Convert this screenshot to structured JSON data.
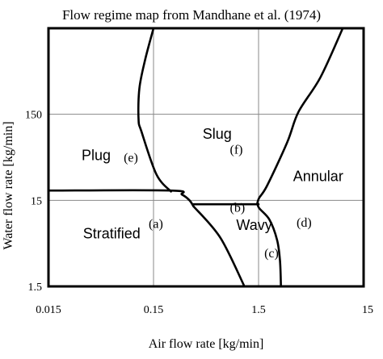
{
  "chart_data": {
    "type": "line",
    "title": "Flow regime map from Mandhane et al. (1974)",
    "xlabel": "Air flow rate [kg/min]",
    "ylabel": "Water flow rate [kg/min]",
    "x_scale": "log",
    "y_scale": "log",
    "xlim": [
      0.015,
      15
    ],
    "ylim": [
      1.5,
      1500
    ],
    "x_ticks": [
      {
        "value": 0.015,
        "label": "0.015"
      },
      {
        "value": 0.15,
        "label": "0.15"
      },
      {
        "value": 1.5,
        "label": "1.5"
      },
      {
        "value": 15,
        "label": "15"
      }
    ],
    "y_ticks": [
      {
        "value": 1.5,
        "label": "1.5"
      },
      {
        "value": 15,
        "label": "15"
      },
      {
        "value": 150,
        "label": "150"
      }
    ],
    "grid": true,
    "series": [
      {
        "key": "plug-slug-left",
        "points": [
          [
            0.15,
            1500
          ],
          [
            0.125,
            650
          ],
          [
            0.11,
            300
          ],
          [
            0.108,
            130
          ],
          [
            0.115,
            95
          ],
          [
            0.16,
            30
          ],
          [
            0.22,
            19
          ]
        ]
      },
      {
        "key": "stratified-upper",
        "points": [
          [
            0.015,
            19.5
          ],
          [
            0.22,
            19.5
          ],
          [
            0.28,
            17.5
          ],
          [
            0.33,
            15
          ],
          [
            0.36,
            12.8
          ]
        ]
      },
      {
        "key": "stratified-wavy",
        "points": [
          [
            0.36,
            12.8
          ],
          [
            0.65,
            5.5
          ],
          [
            1.1,
            1.5
          ]
        ]
      },
      {
        "key": "wavy-top",
        "points": [
          [
            0.36,
            13.5
          ],
          [
            1.5,
            13.5
          ]
        ]
      },
      {
        "key": "annular-boundary",
        "points": [
          [
            9.5,
            1500
          ],
          [
            5.8,
            400
          ],
          [
            3.6,
            160
          ],
          [
            2.8,
            70
          ],
          [
            1.8,
            22
          ],
          [
            1.5,
            15.5
          ],
          [
            1.5,
            12.5
          ],
          [
            1.9,
            9
          ],
          [
            2.25,
            5.2
          ],
          [
            2.4,
            3
          ],
          [
            2.45,
            1.5
          ]
        ]
      }
    ],
    "annotations": [
      {
        "key": "plug",
        "text": "Plug",
        "style": "sans",
        "x": 0.031,
        "y": 44
      },
      {
        "key": "e",
        "text": "(e)",
        "style": "serif",
        "x": 0.078,
        "y": 42
      },
      {
        "key": "slug",
        "text": "Slug",
        "style": "sans",
        "x": 0.44,
        "y": 78
      },
      {
        "key": "f",
        "text": "(f)",
        "style": "serif",
        "x": 0.8,
        "y": 52
      },
      {
        "key": "annular",
        "text": "Annular",
        "style": "sans",
        "x": 3.2,
        "y": 25
      },
      {
        "key": "b",
        "text": "(b)",
        "style": "serif",
        "x": 0.8,
        "y": 11
      },
      {
        "key": "wavy",
        "text": "Wavy",
        "style": "sans",
        "x": 0.92,
        "y": 6.8
      },
      {
        "key": "d",
        "text": "(d)",
        "style": "serif",
        "x": 3.45,
        "y": 7.4
      },
      {
        "key": "c",
        "text": "(c)",
        "style": "serif",
        "x": 1.7,
        "y": 3.25
      },
      {
        "key": "stratified",
        "text": "Stratified",
        "style": "sans",
        "x": 0.032,
        "y": 5.4
      },
      {
        "key": "a",
        "text": "(a)",
        "style": "serif",
        "x": 0.135,
        "y": 7.2
      }
    ]
  }
}
